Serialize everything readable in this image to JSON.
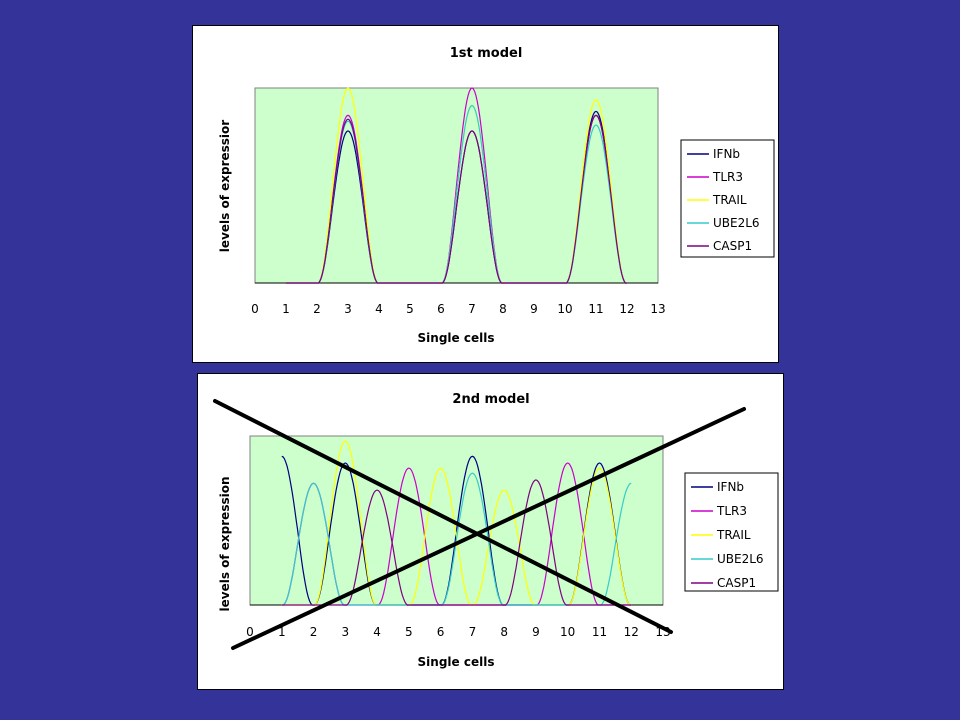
{
  "chart_data": [
    {
      "type": "line",
      "title": "1st model",
      "xlabel": "Single cells",
      "ylabel": "levels of expressior",
      "x_ticks": [
        "0",
        "1",
        "2",
        "3",
        "4",
        "5",
        "6",
        "7",
        "8",
        "9",
        "10",
        "11",
        "12",
        "13"
      ],
      "xlim": [
        0,
        13
      ],
      "ylim": [
        0,
        1
      ],
      "legend_position": "right",
      "plot_background": "#ccffcc",
      "x": [
        1,
        2,
        3,
        4,
        5,
        6,
        7,
        8,
        9,
        10,
        11,
        12
      ],
      "series": [
        {
          "name": "IFNb",
          "color": "#000080",
          "values": [
            0,
            0,
            0.78,
            0,
            0,
            0,
            0.78,
            0,
            0,
            0,
            0.88,
            0
          ]
        },
        {
          "name": "TLR3",
          "color": "#cc00cc",
          "values": [
            0,
            0,
            0.86,
            0,
            0,
            0,
            1.0,
            0,
            0,
            0,
            0.86,
            0
          ]
        },
        {
          "name": "TRAIL",
          "color": "#ffff00",
          "values": [
            0,
            0,
            1.0,
            0,
            0,
            0,
            0.91,
            0,
            0,
            0,
            0.94,
            0
          ]
        },
        {
          "name": "UBE2L6",
          "color": "#33cccc",
          "values": [
            0,
            0,
            0.83,
            0,
            0,
            0,
            0.91,
            0,
            0,
            0,
            0.81,
            0
          ]
        },
        {
          "name": "CASP1",
          "color": "#800080",
          "values": [
            0,
            0,
            0.84,
            0,
            0,
            0,
            0.78,
            0,
            0,
            0,
            0.86,
            0
          ]
        }
      ]
    },
    {
      "type": "line",
      "title": "2nd model",
      "xlabel": "Single cells",
      "ylabel": "levels of expression",
      "x_ticks": [
        "0",
        "1",
        "2",
        "3",
        "4",
        "5",
        "6",
        "7",
        "8",
        "9",
        "10",
        "11",
        "12",
        "13"
      ],
      "xlim": [
        0,
        13
      ],
      "ylim": [
        0,
        1
      ],
      "legend_position": "right",
      "plot_background": "#ccffcc",
      "crossed_out": true,
      "x": [
        1,
        2,
        3,
        4,
        5,
        6,
        7,
        8,
        9,
        10,
        11,
        12
      ],
      "series": [
        {
          "name": "IFNb",
          "color": "#000080",
          "values": [
            0.88,
            0,
            0.84,
            0,
            0,
            0,
            0.88,
            0,
            0,
            0,
            0.84,
            0
          ]
        },
        {
          "name": "TLR3",
          "color": "#cc00cc",
          "values": [
            0,
            0.72,
            0,
            0,
            0.81,
            0,
            0,
            0,
            0,
            0.84,
            0,
            0
          ]
        },
        {
          "name": "TRAIL",
          "color": "#ffff00",
          "values": [
            0,
            0,
            0.97,
            0,
            0,
            0.81,
            0,
            0.68,
            0,
            0,
            0.81,
            0
          ]
        },
        {
          "name": "UBE2L6",
          "color": "#33cccc",
          "values": [
            0,
            0.72,
            0,
            0,
            0,
            0,
            0.78,
            0,
            0,
            0,
            0,
            0.72
          ]
        },
        {
          "name": "CASP1",
          "color": "#800080",
          "values": [
            0,
            0,
            0,
            0.68,
            0,
            0,
            0,
            0,
            0.74,
            0,
            0,
            0
          ]
        }
      ]
    }
  ]
}
